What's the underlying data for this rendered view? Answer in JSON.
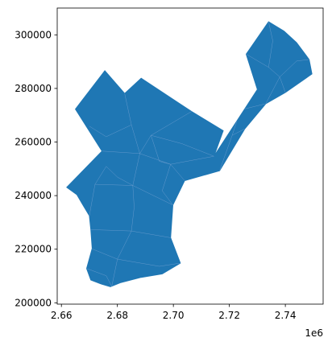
{
  "chart_data": {
    "type": "map",
    "title": "",
    "xlabel": "",
    "ylabel": "",
    "x_ticks": [
      {
        "value": 2.66,
        "label": "2.66"
      },
      {
        "value": 2.68,
        "label": "2.68"
      },
      {
        "value": 2.7,
        "label": "2.70"
      },
      {
        "value": 2.72,
        "label": "2.72"
      },
      {
        "value": 2.74,
        "label": "2.74"
      }
    ],
    "x_offset_label": "1e6",
    "y_ticks": [
      {
        "value": 200000,
        "label": "200000"
      },
      {
        "value": 220000,
        "label": "220000"
      },
      {
        "value": 240000,
        "label": "240000"
      },
      {
        "value": 260000,
        "label": "260000"
      },
      {
        "value": 280000,
        "label": "280000"
      },
      {
        "value": 300000,
        "label": "300000"
      }
    ],
    "xlim": [
      2.6585,
      2.7535
    ],
    "ylim": [
      199500,
      310000
    ],
    "fill_color": "#1f77b4",
    "boundary_color": "#6f9fd0",
    "outline": [
      [
        2.6619,
        243100
      ],
      [
        2.6745,
        256600
      ],
      [
        2.665,
        272300
      ],
      [
        2.6755,
        286600
      ],
      [
        2.6826,
        278100
      ],
      [
        2.6885,
        283800
      ],
      [
        2.7065,
        271400
      ],
      [
        2.7178,
        264200
      ],
      [
        2.7145,
        254700
      ],
      [
        2.73,
        279600
      ],
      [
        2.726,
        292800
      ],
      [
        2.734,
        304900
      ],
      [
        2.7395,
        301400
      ],
      [
        2.744,
        297100
      ],
      [
        2.7485,
        290800
      ],
      [
        2.7495,
        285400
      ],
      [
        2.74,
        278500
      ],
      [
        2.733,
        274300
      ],
      [
        2.7255,
        264900
      ],
      [
        2.7165,
        249300
      ],
      [
        2.704,
        245600
      ],
      [
        2.6998,
        236500
      ],
      [
        2.699,
        224300
      ],
      [
        2.7025,
        214800
      ],
      [
        2.696,
        210800
      ],
      [
        2.6885,
        209500
      ],
      [
        2.681,
        207500
      ],
      [
        2.6775,
        206000
      ],
      [
        2.674,
        207100
      ],
      [
        2.6705,
        208500
      ],
      [
        2.669,
        212800
      ],
      [
        2.671,
        220300
      ],
      [
        2.6705,
        227300
      ],
      [
        2.67,
        232500
      ],
      [
        2.6675,
        236800
      ],
      [
        2.6655,
        240400
      ]
    ],
    "boundaries": [
      [
        [
          2.67,
          232500
        ],
        [
          2.672,
          244200
        ],
        [
          2.676,
          250900
        ]
      ],
      [
        [
          2.672,
          244200
        ],
        [
          2.6855,
          243800
        ],
        [
          2.6998,
          236500
        ]
      ],
      [
        [
          2.6855,
          243800
        ],
        [
          2.688,
          255700
        ],
        [
          2.692,
          262500
        ],
        [
          2.7065,
          271400
        ]
      ],
      [
        [
          2.6745,
          256600
        ],
        [
          2.688,
          255700
        ],
        [
          2.699,
          251700
        ],
        [
          2.7145,
          254700
        ]
      ],
      [
        [
          2.6826,
          278100
        ],
        [
          2.685,
          266400
        ],
        [
          2.688,
          255700
        ]
      ],
      [
        [
          2.685,
          266400
        ],
        [
          2.676,
          262000
        ],
        [
          2.67,
          265900
        ]
      ],
      [
        [
          2.6705,
          227300
        ],
        [
          2.685,
          226800
        ],
        [
          2.699,
          224300
        ]
      ],
      [
        [
          2.678,
          206100
        ],
        [
          2.68,
          216300
        ],
        [
          2.685,
          226800
        ],
        [
          2.686,
          235700
        ],
        [
          2.6855,
          243800
        ]
      ],
      [
        [
          2.6705,
          220300
        ],
        [
          2.68,
          216300
        ],
        [
          2.695,
          213600
        ],
        [
          2.7025,
          214800
        ]
      ],
      [
        [
          2.692,
          262500
        ],
        [
          2.703,
          259400
        ],
        [
          2.7145,
          254700
        ]
      ],
      [
        [
          2.704,
          245600
        ],
        [
          2.699,
          251700
        ],
        [
          2.696,
          241800
        ],
        [
          2.6998,
          236500
        ]
      ],
      [
        [
          2.7165,
          249300
        ],
        [
          2.721,
          262500
        ],
        [
          2.7255,
          264900
        ]
      ],
      [
        [
          2.721,
          262500
        ],
        [
          2.724,
          272000
        ],
        [
          2.73,
          279600
        ]
      ],
      [
        [
          2.724,
          272000
        ],
        [
          2.733,
          274300
        ],
        [
          2.738,
          284300
        ],
        [
          2.74,
          278500
        ]
      ],
      [
        [
          2.726,
          292800
        ],
        [
          2.734,
          287900
        ],
        [
          2.738,
          284300
        ],
        [
          2.744,
          290200
        ],
        [
          2.7485,
          290800
        ]
      ],
      [
        [
          2.734,
          287900
        ],
        [
          2.7355,
          297800
        ],
        [
          2.734,
          304900
        ]
      ],
      [
        [
          2.669,
          212800
        ],
        [
          2.676,
          210100
        ],
        [
          2.678,
          206100
        ]
      ],
      [
        [
          2.676,
          250900
        ],
        [
          2.68,
          246900
        ],
        [
          2.6855,
          243800
        ]
      ],
      [
        [
          2.692,
          262500
        ],
        [
          2.695,
          252800
        ],
        [
          2.699,
          251700
        ]
      ]
    ],
    "regions": 180
  }
}
